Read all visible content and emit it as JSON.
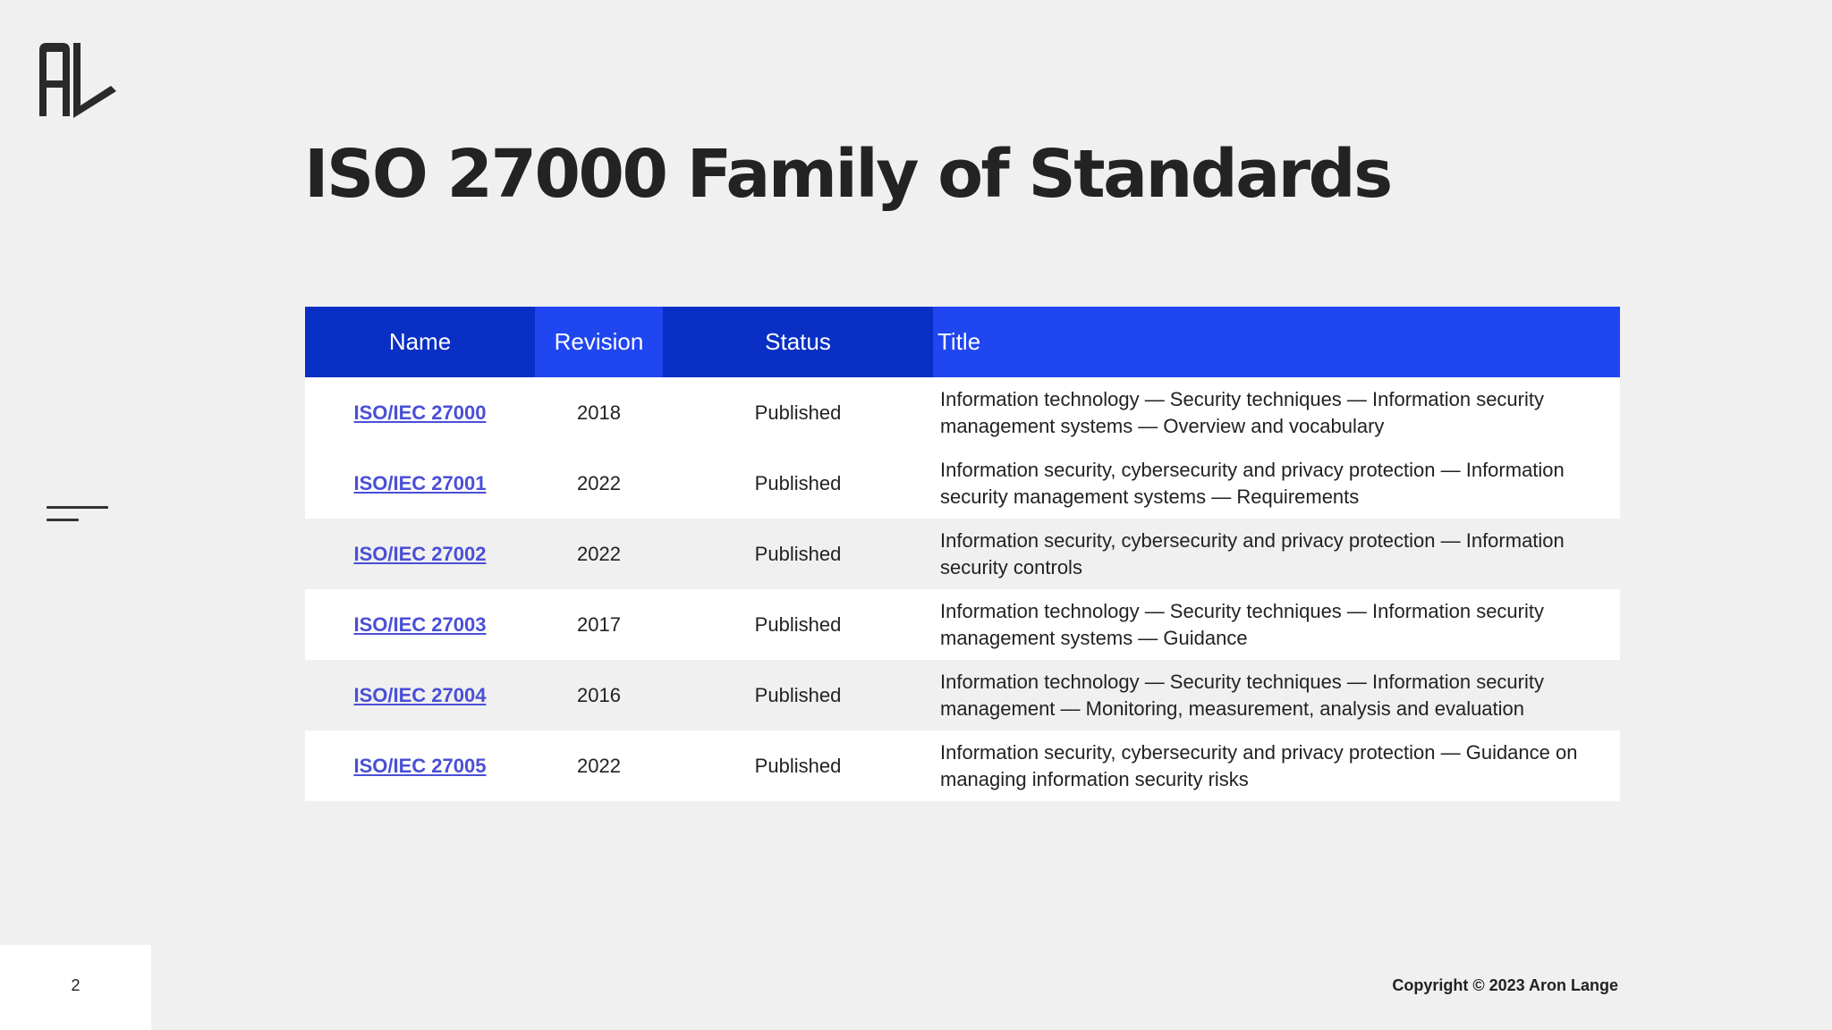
{
  "header": {
    "title": "ISO 27000 Family of Standards"
  },
  "table": {
    "columns": {
      "name": "Name",
      "revision": "Revision",
      "status": "Status",
      "title": "Title"
    },
    "rows": [
      {
        "name": "ISO/IEC 27000",
        "revision": "2018",
        "status": "Published",
        "title": "Information technology — Security techniques — Information security management systems — Overview and vocabulary"
      },
      {
        "name": "ISO/IEC 27001",
        "revision": "2022",
        "status": "Published",
        "title": "Information security, cybersecurity and privacy protection — Information security management systems — Requirements"
      },
      {
        "name": "ISO/IEC 27002",
        "revision": "2022",
        "status": "Published",
        "title": "Information security, cybersecurity and privacy protection — Information security controls"
      },
      {
        "name": "ISO/IEC 27003",
        "revision": "2017",
        "status": "Published",
        "title": "Information technology — Security techniques — Information security management systems — Guidance"
      },
      {
        "name": "ISO/IEC 27004",
        "revision": "2016",
        "status": "Published",
        "title": "Information technology — Security techniques — Information security management — Monitoring, measurement, analysis and evaluation"
      },
      {
        "name": "ISO/IEC 27005",
        "revision": "2022",
        "status": "Published",
        "title": "Information security, cybersecurity and privacy protection — Guidance on managing information security risks"
      }
    ]
  },
  "footer": {
    "page_number": "2",
    "copyright": "Copyright © 2023 Aron Lange"
  },
  "icons": {
    "logo": "al-monogram-logo",
    "menu": "menu-lines-icon"
  },
  "colors": {
    "header_dark": "#0a2fc4",
    "header_light": "#1f46f0",
    "link": "#4a4fd6",
    "background": "#f0f0f0"
  }
}
